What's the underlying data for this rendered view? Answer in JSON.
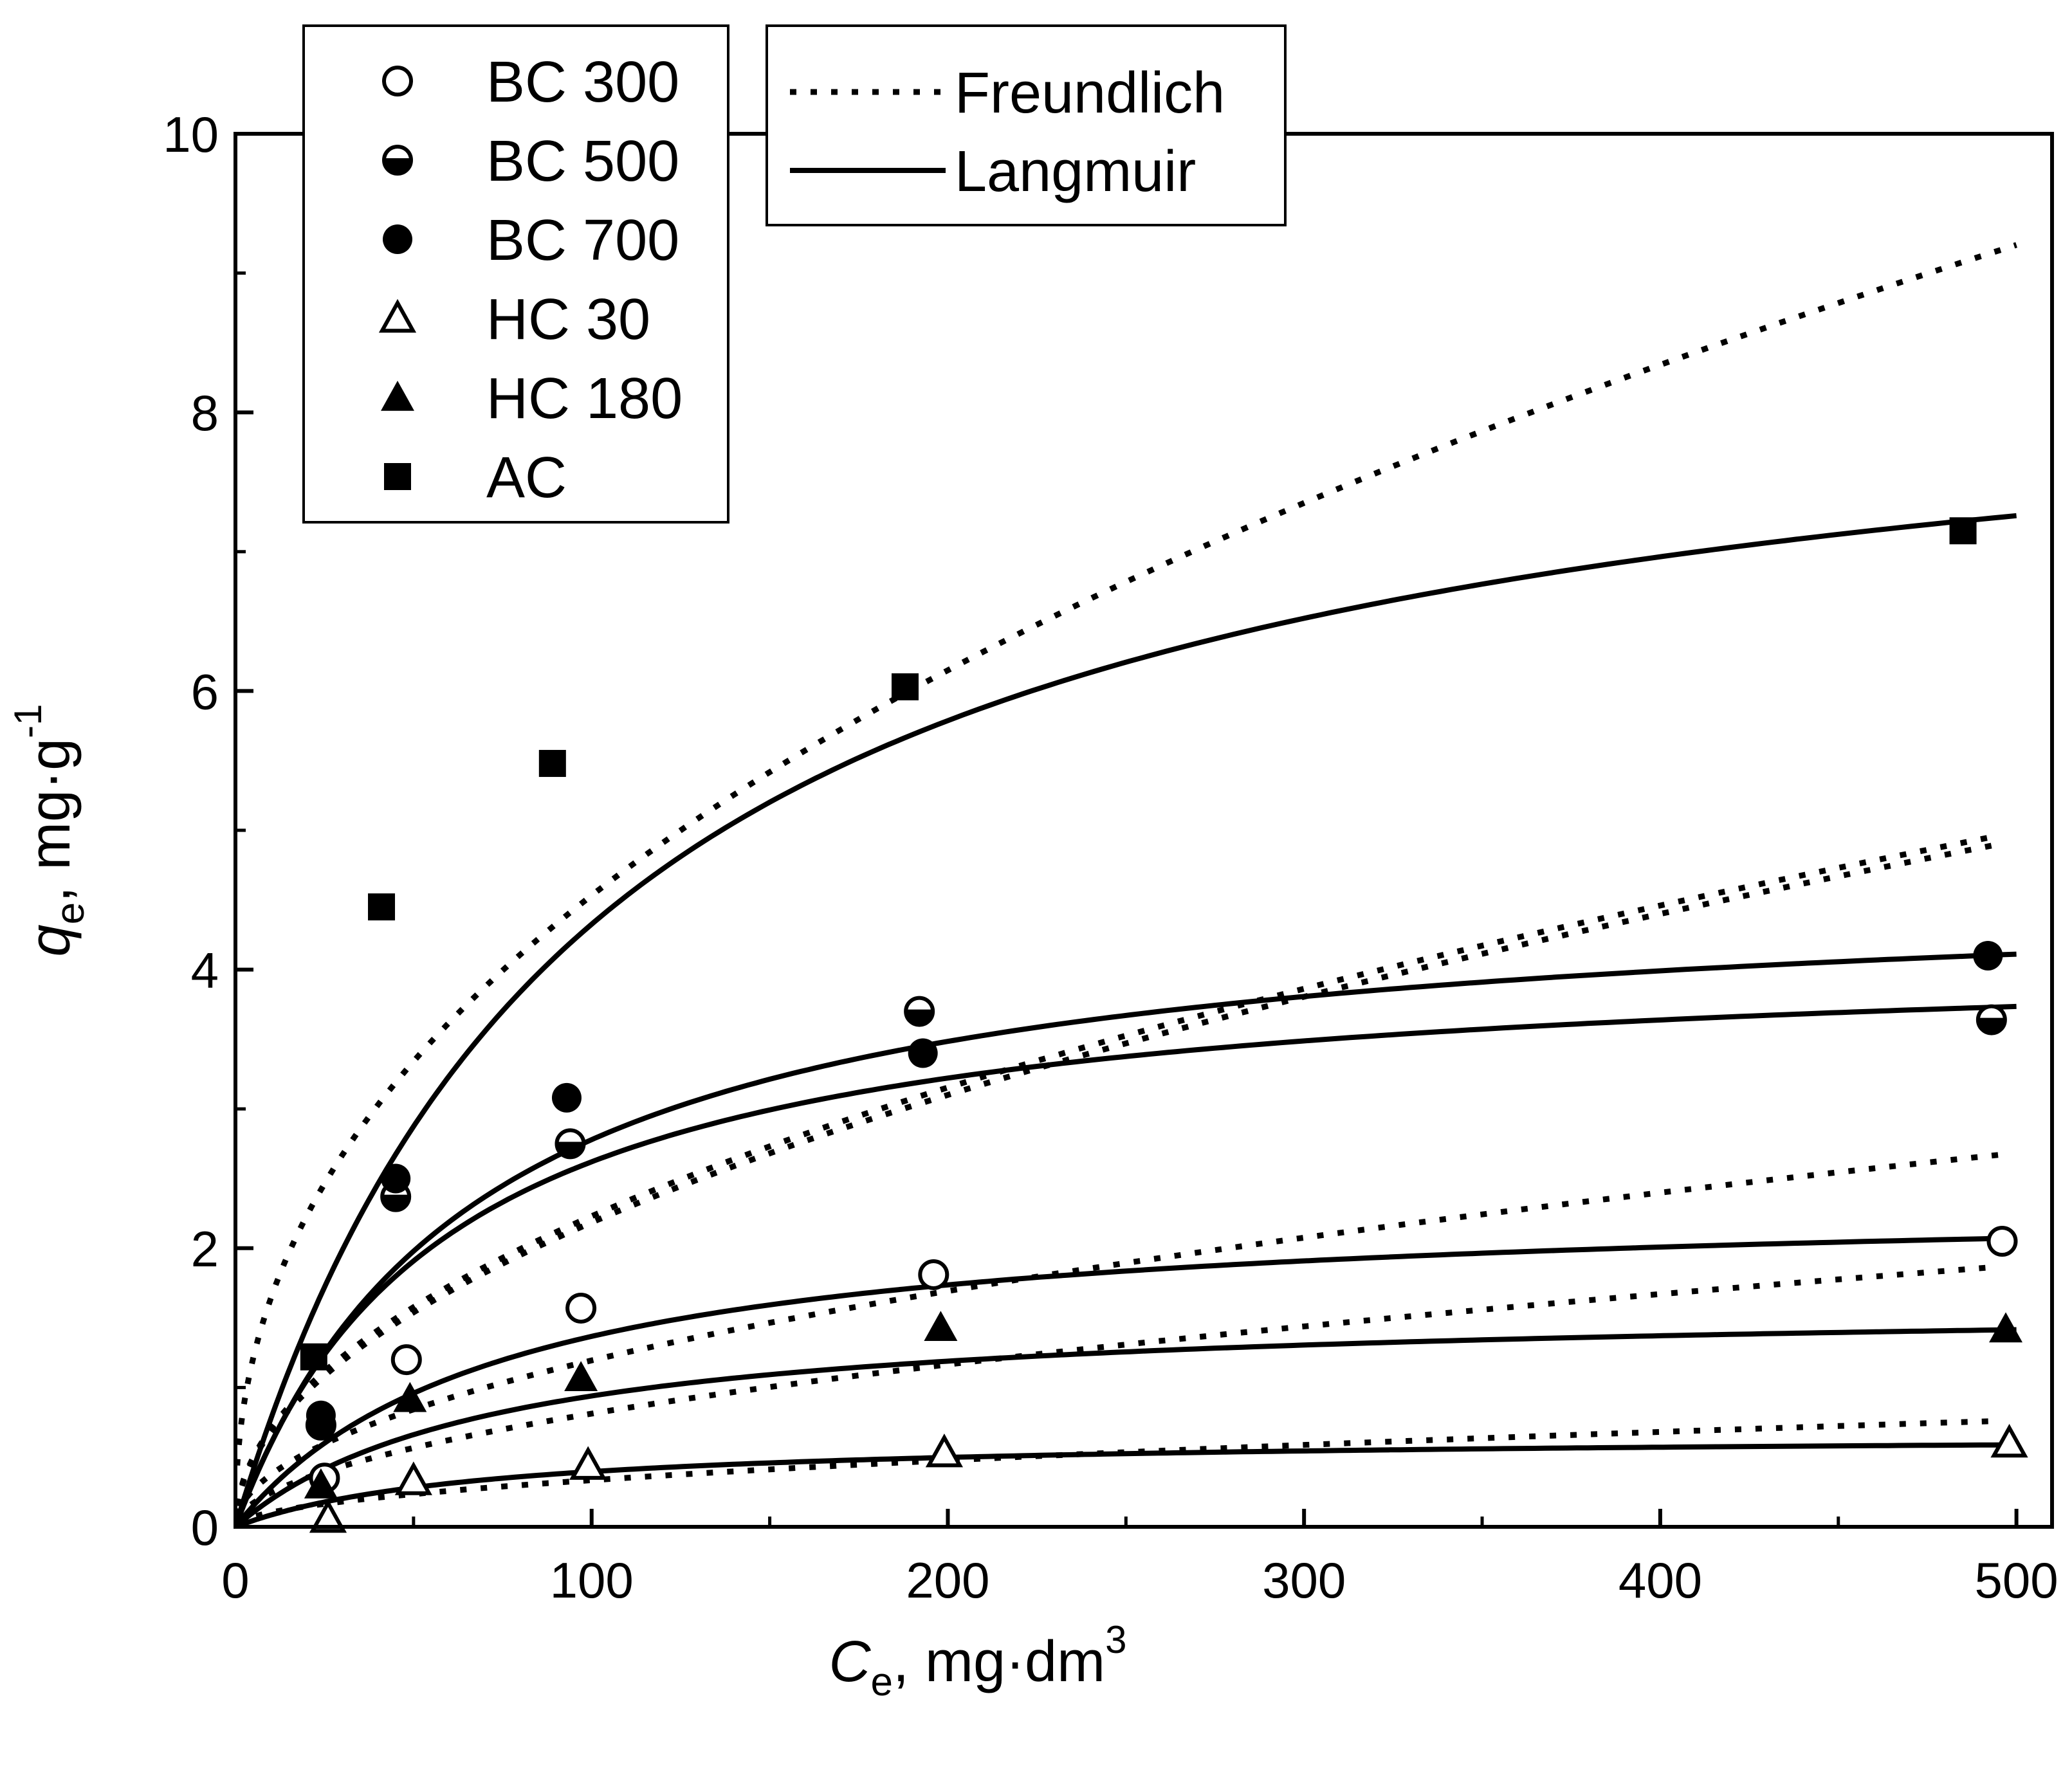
{
  "chart_data": {
    "type": "scatter",
    "title": "",
    "xlabel": {
      "var": "C",
      "sub": "e",
      "unit": ", mg·dm",
      "sup": "3"
    },
    "ylabel": {
      "var": "q",
      "sub": "e",
      "unit": ", mg·g",
      "sup": "-1"
    },
    "xlim": [
      0,
      510
    ],
    "ylim": [
      0,
      10
    ],
    "x_ticks": [
      0,
      100,
      200,
      300,
      400,
      500
    ],
    "x_tick_labels": [
      "0",
      "100",
      "200",
      "300",
      "400",
      "500"
    ],
    "y_ticks": [
      0,
      2,
      4,
      6,
      8,
      10
    ],
    "y_tick_labels": [
      "0",
      "2",
      "4",
      "6",
      "8",
      "10"
    ],
    "grid": false,
    "legend_series_position": "top-left",
    "legend_models_position": "top-center",
    "series": [
      {
        "name": "BC 300",
        "marker": "circle-open",
        "x": [
          25,
          48,
          97,
          196,
          496
        ],
        "y": [
          0.35,
          1.2,
          1.57,
          1.81,
          2.05
        ]
      },
      {
        "name": "BC 500",
        "marker": "circle-half",
        "x": [
          24,
          45,
          94,
          192,
          493
        ],
        "y": [
          0.73,
          2.37,
          2.75,
          3.7,
          3.64
        ]
      },
      {
        "name": "BC 700",
        "marker": "circle-filled",
        "x": [
          24,
          45,
          93,
          193,
          492
        ],
        "y": [
          0.8,
          2.5,
          3.08,
          3.4,
          4.1
        ]
      },
      {
        "name": "HC 30",
        "marker": "triangle-open",
        "x": [
          26,
          50,
          99,
          199,
          498
        ],
        "y": [
          0.06,
          0.33,
          0.44,
          0.53,
          0.6
        ]
      },
      {
        "name": "HC 180",
        "marker": "triangle-filled",
        "x": [
          24,
          49,
          97,
          198,
          497
        ],
        "y": [
          0.3,
          0.92,
          1.07,
          1.43,
          1.42
        ]
      },
      {
        "name": "AC",
        "marker": "square-filled",
        "x": [
          22,
          41,
          89,
          188,
          485
        ],
        "y": [
          1.22,
          4.45,
          5.48,
          6.03,
          7.15
        ]
      }
    ],
    "models": [
      {
        "name": "Freundlich",
        "style": "dotted",
        "curves": [
          {
            "for": "AC",
            "K": 0.5975,
            "n": 0.44,
            "xmax": 500
          },
          {
            "for": "BC 700",
            "K": 0.223,
            "n": 0.5,
            "xmax": 495
          },
          {
            "for": "BC 500",
            "K": 0.2135,
            "n": 0.505,
            "xmax": 495
          },
          {
            "for": "BC 300",
            "K": 0.1178,
            "n": 0.503,
            "xmax": 495
          },
          {
            "for": "HC 180",
            "K": 0.0741,
            "n": 0.52,
            "xmax": 495
          },
          {
            "for": "HC 30",
            "K": 0.0317,
            "n": 0.512,
            "xmax": 495
          }
        ]
      },
      {
        "name": "Langmuir",
        "style": "solid",
        "curves": [
          {
            "for": "AC",
            "qmax": 8.74,
            "K": 0.0098,
            "xmax": 500
          },
          {
            "for": "BC 700",
            "qmax": 4.67,
            "K": 0.0147,
            "xmax": 500
          },
          {
            "for": "BC 500",
            "qmax": 4.18,
            "K": 0.0168,
            "xmax": 500
          },
          {
            "for": "BC 300",
            "qmax": 2.38,
            "K": 0.0135,
            "xmax": 500
          },
          {
            "for": "HC 180",
            "qmax": 1.62,
            "K": 0.0138,
            "xmax": 500
          },
          {
            "for": "HC 30",
            "qmax": 0.67,
            "K": 0.0145,
            "xmax": 500
          }
        ]
      }
    ]
  }
}
